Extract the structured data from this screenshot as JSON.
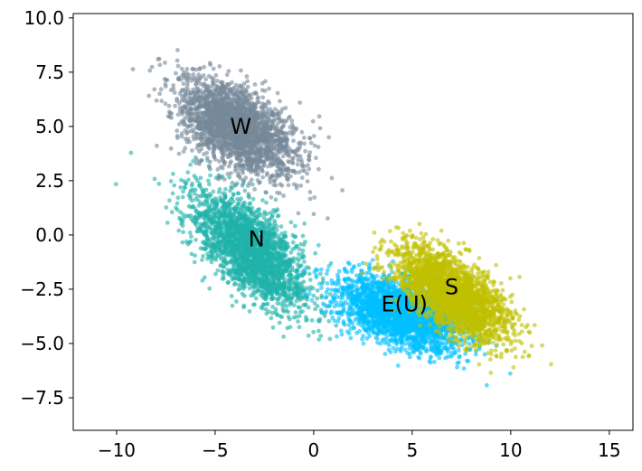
{
  "chart_data": {
    "type": "scatter",
    "title": "",
    "xlabel": "",
    "ylabel": "",
    "xlim": [
      -12.2,
      16.2
    ],
    "ylim": [
      -9.0,
      10.2
    ],
    "grid": false,
    "x_ticks": [
      -10,
      -5,
      0,
      5,
      10,
      15
    ],
    "x_tick_labels": [
      "−10",
      "−5",
      "0",
      "5",
      "10",
      "15"
    ],
    "y_ticks": [
      10.0,
      7.5,
      5.0,
      2.5,
      0.0,
      -2.5,
      -5.0,
      -7.5
    ],
    "y_tick_labels": [
      "10.0",
      "7.5",
      "5.0",
      "2.5",
      "0.0",
      "−2.5",
      "−5.0",
      "−7.5"
    ],
    "series": [
      {
        "name": "N",
        "color": "#20b2aa",
        "center": [
          -3.2,
          -0.7
        ],
        "spread_major": 3.3,
        "spread_minor": 1.5,
        "angle_deg": -42,
        "count": 2400
      },
      {
        "name": "E(U)",
        "color": "#00bfff",
        "center": [
          4.4,
          -3.6
        ],
        "spread_major": 3.0,
        "spread_minor": 1.25,
        "angle_deg": -18,
        "count": 2400
      },
      {
        "name": "S",
        "color": "#bfbf00",
        "center": [
          7.0,
          -2.7
        ],
        "spread_major": 3.0,
        "spread_minor": 1.3,
        "angle_deg": -33,
        "count": 2400
      },
      {
        "name": "W",
        "color": "#778899",
        "center": [
          -4.0,
          5.0
        ],
        "spread_major": 3.0,
        "spread_minor": 1.55,
        "angle_deg": -30,
        "count": 2400
      }
    ],
    "annotations": [
      {
        "text": "W",
        "x": -3.7,
        "y": 5.0
      },
      {
        "text": "N",
        "x": -2.9,
        "y": -0.2
      },
      {
        "text": "E(U)",
        "x": 4.6,
        "y": -3.2
      },
      {
        "text": "S",
        "x": 7.0,
        "y": -2.4
      }
    ]
  }
}
